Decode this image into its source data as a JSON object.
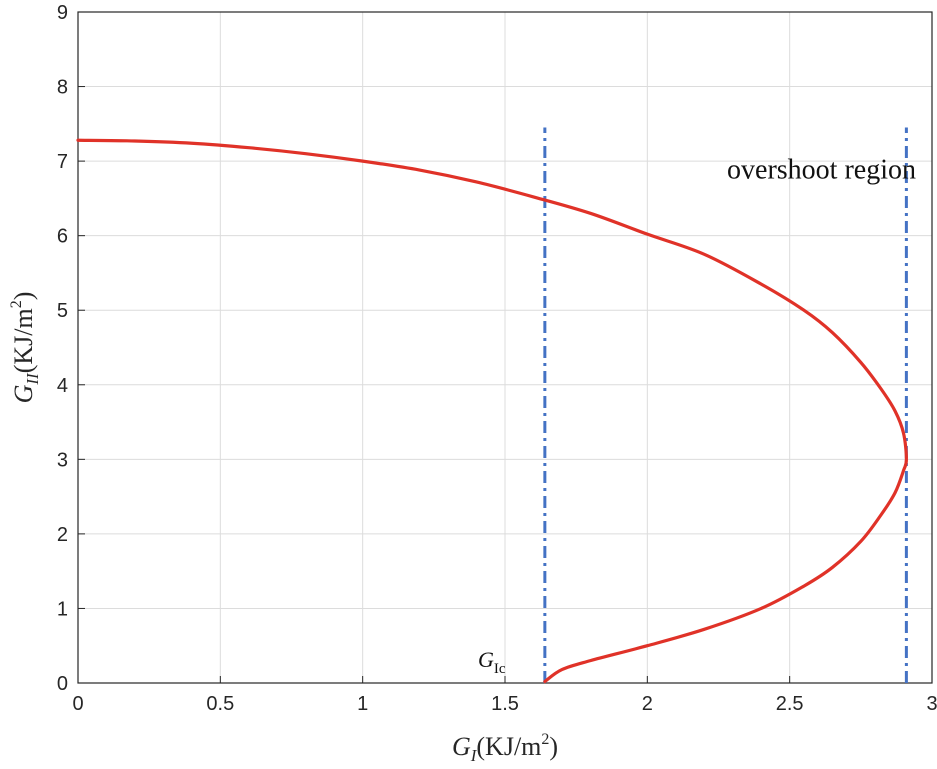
{
  "chart_data": {
    "type": "line",
    "xlabel": "G_I(KJ/m^2)",
    "ylabel": "G_II(KJ/m^2)",
    "xlim": [
      0,
      3
    ],
    "ylim": [
      0,
      9
    ],
    "xticks": [
      "0",
      "0.5",
      "1",
      "1.5",
      "2",
      "2.5",
      "3"
    ],
    "yticks": [
      "0",
      "1",
      "2",
      "3",
      "4",
      "5",
      "6",
      "7",
      "8",
      "9"
    ],
    "grid": true,
    "legend": "none",
    "colors": {
      "curve": "#e03228",
      "vline": "#4472c4",
      "grid": "#dcdcdc"
    },
    "series": [
      {
        "x": [
          1.64,
          1.7,
          1.8,
          2.0,
          2.2,
          2.4,
          2.55,
          2.65,
          2.75,
          2.82,
          2.87,
          2.9,
          2.91,
          2.9,
          2.87,
          2.82,
          2.75,
          2.65,
          2.55,
          2.4,
          2.2,
          2.0,
          1.8,
          1.6,
          1.4,
          1.2,
          1.0,
          0.8,
          0.6,
          0.4,
          0.2,
          0.0
        ],
        "y": [
          0.02,
          0.18,
          0.3,
          0.5,
          0.72,
          1.0,
          1.3,
          1.55,
          1.9,
          2.25,
          2.55,
          2.85,
          3.0,
          3.35,
          3.65,
          3.95,
          4.3,
          4.7,
          5.0,
          5.35,
          5.75,
          6.02,
          6.3,
          6.52,
          6.72,
          6.88,
          7.0,
          7.1,
          7.18,
          7.24,
          7.27,
          7.28
        ]
      }
    ],
    "vertical_lines": [
      {
        "x": 1.64,
        "y_from": 0,
        "y_to": 7.45,
        "style": "dash-dot"
      },
      {
        "x": 2.91,
        "y_from": 0,
        "y_to": 7.45,
        "style": "dash-dot"
      }
    ],
    "annotations": [
      {
        "text": "overshoot region",
        "x": 2.28,
        "y": 6.9
      },
      {
        "text": "G",
        "sub": "Ic",
        "x": 1.53,
        "y": 0.32
      }
    ]
  }
}
